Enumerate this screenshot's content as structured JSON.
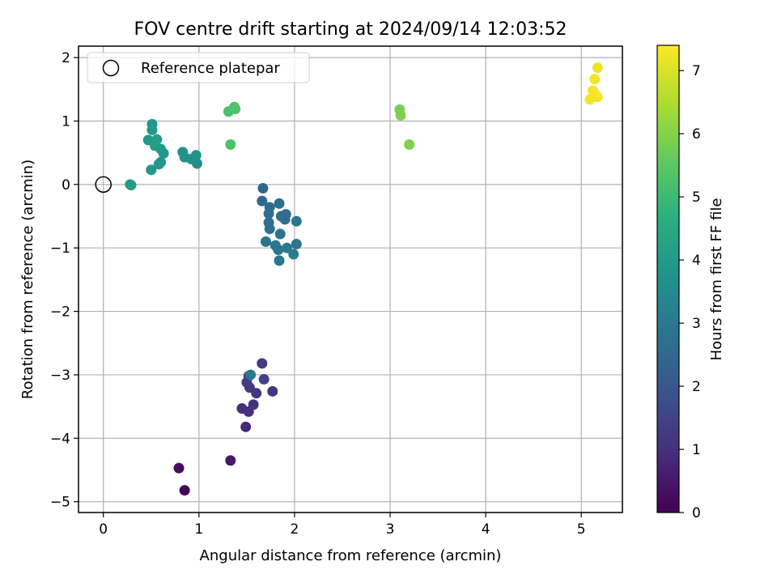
{
  "chart_data": {
    "type": "scatter",
    "title": "FOV centre drift starting at 2024/09/14 12:03:52",
    "xlabel": "Angular distance from reference (arcmin)",
    "ylabel": "Rotation from reference (arcmin)",
    "xlim": [
      -0.26,
      5.43
    ],
    "ylim": [
      -5.17,
      2.18
    ],
    "x_ticks": [
      0,
      1,
      2,
      3,
      4,
      5
    ],
    "y_ticks": [
      2,
      1,
      0,
      -1,
      -2,
      -3,
      -4,
      -5
    ],
    "x_tick_labels": [
      "0",
      "1",
      "2",
      "3",
      "4",
      "5"
    ],
    "y_tick_labels": [
      "2",
      "1",
      "0",
      "−1",
      "−2",
      "−3",
      "−4",
      "−5"
    ],
    "grid": true,
    "legend": {
      "location": "upper-left",
      "entries": [
        {
          "label": "Reference platepar",
          "marker": "open-circle"
        }
      ]
    },
    "reference_point": {
      "x": 0,
      "y": 0
    },
    "colormap": "viridis",
    "colorbar": {
      "label": "Hours from first FF file",
      "range": [
        0,
        7.4
      ],
      "ticks": [
        0,
        1,
        2,
        3,
        4,
        5,
        6,
        7
      ],
      "tick_labels": [
        "0",
        "1",
        "2",
        "3",
        "4",
        "5",
        "6",
        "7"
      ]
    },
    "points": [
      {
        "x": 0.85,
        "y": -4.82,
        "c": 0.02
      },
      {
        "x": 0.79,
        "y": -4.47,
        "c": 0.25
      },
      {
        "x": 1.33,
        "y": -4.35,
        "c": 0.5
      },
      {
        "x": 1.49,
        "y": -3.82,
        "c": 0.8
      },
      {
        "x": 1.45,
        "y": -3.53,
        "c": 0.9
      },
      {
        "x": 1.52,
        "y": -3.58,
        "c": 1.0
      },
      {
        "x": 1.57,
        "y": -3.47,
        "c": 1.1
      },
      {
        "x": 1.6,
        "y": -3.29,
        "c": 1.2
      },
      {
        "x": 1.53,
        "y": -3.2,
        "c": 1.3
      },
      {
        "x": 1.5,
        "y": -3.12,
        "c": 1.35
      },
      {
        "x": 1.52,
        "y": -3.02,
        "c": 1.4
      },
      {
        "x": 1.68,
        "y": -3.07,
        "c": 1.45
      },
      {
        "x": 1.66,
        "y": -2.82,
        "c": 1.3
      },
      {
        "x": 1.77,
        "y": -3.26,
        "c": 1.15
      },
      {
        "x": 1.54,
        "y": -3.0,
        "c": 2.95
      },
      {
        "x": 1.67,
        "y": -0.06,
        "c": 2.5
      },
      {
        "x": 1.66,
        "y": -0.26,
        "c": 2.55
      },
      {
        "x": 1.74,
        "y": -0.36,
        "c": 2.6
      },
      {
        "x": 1.73,
        "y": -0.46,
        "c": 2.65
      },
      {
        "x": 1.73,
        "y": -0.6,
        "c": 2.7
      },
      {
        "x": 1.74,
        "y": -0.7,
        "c": 2.75
      },
      {
        "x": 1.7,
        "y": -0.9,
        "c": 2.8
      },
      {
        "x": 1.8,
        "y": -0.96,
        "c": 2.85
      },
      {
        "x": 1.83,
        "y": -1.03,
        "c": 2.9
      },
      {
        "x": 1.84,
        "y": -1.2,
        "c": 2.95
      },
      {
        "x": 1.92,
        "y": -1.0,
        "c": 3.0
      },
      {
        "x": 1.99,
        "y": -1.1,
        "c": 3.05
      },
      {
        "x": 2.02,
        "y": -0.94,
        "c": 2.9
      },
      {
        "x": 2.02,
        "y": -0.58,
        "c": 2.85
      },
      {
        "x": 1.85,
        "y": -0.78,
        "c": 2.8
      },
      {
        "x": 1.84,
        "y": -0.3,
        "c": 2.75
      },
      {
        "x": 1.86,
        "y": -0.5,
        "c": 2.7
      },
      {
        "x": 1.91,
        "y": -0.47,
        "c": 2.65
      },
      {
        "x": 1.9,
        "y": -0.55,
        "c": 2.6
      },
      {
        "x": 0.28,
        "y": 0.0,
        "c": 4.0
      },
      {
        "x": 0.29,
        "y": -0.01,
        "c": 4.05
      },
      {
        "x": 0.51,
        "y": 0.95,
        "c": 3.9
      },
      {
        "x": 0.51,
        "y": 0.86,
        "c": 3.95
      },
      {
        "x": 0.47,
        "y": 0.7,
        "c": 4.0
      },
      {
        "x": 0.53,
        "y": 0.67,
        "c": 4.05
      },
      {
        "x": 0.54,
        "y": 0.61,
        "c": 4.1
      },
      {
        "x": 0.56,
        "y": 0.71,
        "c": 4.1
      },
      {
        "x": 0.6,
        "y": 0.56,
        "c": 4.0
      },
      {
        "x": 0.63,
        "y": 0.49,
        "c": 3.95
      },
      {
        "x": 0.58,
        "y": 0.32,
        "c": 3.9
      },
      {
        "x": 0.5,
        "y": 0.23,
        "c": 3.85
      },
      {
        "x": 0.6,
        "y": 0.35,
        "c": 3.9
      },
      {
        "x": 0.83,
        "y": 0.51,
        "c": 3.8
      },
      {
        "x": 0.85,
        "y": 0.43,
        "c": 3.75
      },
      {
        "x": 0.92,
        "y": 0.4,
        "c": 3.7
      },
      {
        "x": 0.97,
        "y": 0.46,
        "c": 3.7
      },
      {
        "x": 0.98,
        "y": 0.33,
        "c": 3.65
      },
      {
        "x": 1.31,
        "y": 1.15,
        "c": 5.2
      },
      {
        "x": 1.37,
        "y": 1.22,
        "c": 5.25
      },
      {
        "x": 1.38,
        "y": 1.19,
        "c": 5.3
      },
      {
        "x": 1.33,
        "y": 0.63,
        "c": 5.3
      },
      {
        "x": 3.1,
        "y": 1.18,
        "c": 5.85
      },
      {
        "x": 3.11,
        "y": 1.09,
        "c": 5.9
      },
      {
        "x": 3.2,
        "y": 0.63,
        "c": 5.95
      },
      {
        "x": 5.17,
        "y": 1.84,
        "c": 7.2
      },
      {
        "x": 5.14,
        "y": 1.66,
        "c": 7.25
      },
      {
        "x": 5.12,
        "y": 1.48,
        "c": 7.3
      },
      {
        "x": 5.15,
        "y": 1.41,
        "c": 7.35
      },
      {
        "x": 5.17,
        "y": 1.38,
        "c": 7.3
      },
      {
        "x": 5.09,
        "y": 1.34,
        "c": 7.25
      }
    ]
  }
}
